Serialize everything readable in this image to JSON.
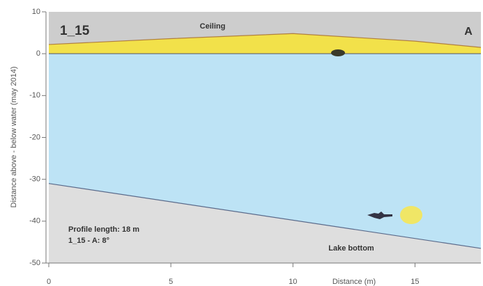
{
  "chart_data": {
    "type": "profile",
    "title": "1_15",
    "corner_label": "A",
    "ceiling_label": "Ceiling",
    "bottom_label": "Lake bottom",
    "info": [
      "Profile length: 18 m",
      "1_15 - A: 8°"
    ],
    "xlabel": "Distance (m)",
    "ylabel": "Distance above - below water (may 2014)",
    "xlim": [
      0,
      17.7
    ],
    "xticks": [
      0,
      5,
      10,
      15
    ],
    "ylim": [
      -50,
      10
    ],
    "yticks": [
      10,
      0,
      -10,
      -20,
      -30,
      -40,
      -50
    ],
    "water_level": 0,
    "ceiling": {
      "x": [
        0,
        5,
        10,
        15,
        17.7
      ],
      "y": [
        2.2,
        3.6,
        4.8,
        3.0,
        1.5
      ],
      "color": "#f2e14a",
      "fill": "#cdcdcd"
    },
    "bottom": {
      "x": [
        0,
        17.7
      ],
      "y": [
        -31,
        -46.5
      ],
      "color": "#5a6a8a",
      "fill": "#dedede"
    },
    "water_color": "#bde3f5"
  }
}
